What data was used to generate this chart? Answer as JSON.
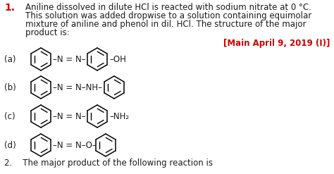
{
  "question_number": "1.",
  "q_line1": "Aniline dissolved in dilute HCl is reacted with sodium nitrate at 0 °C.",
  "q_line2": "This solution was added dropwise to a solution containing equimolar",
  "q_line3": "mixture of aniline and phenol in dil. HCl. The structure of the major",
  "q_line4": "product is:",
  "reference": "[Main April 9, 2019 (I)]",
  "options": [
    "(a)",
    "(b)",
    "(c)",
    "(d)"
  ],
  "text_color": "#1a1a1a",
  "number_color": "#cc0000",
  "reference_color": "#cc0000",
  "bg_color": "#ffffff",
  "font_size_body": 8.5,
  "bottom_text": "2.    The major product of the following reaction is"
}
